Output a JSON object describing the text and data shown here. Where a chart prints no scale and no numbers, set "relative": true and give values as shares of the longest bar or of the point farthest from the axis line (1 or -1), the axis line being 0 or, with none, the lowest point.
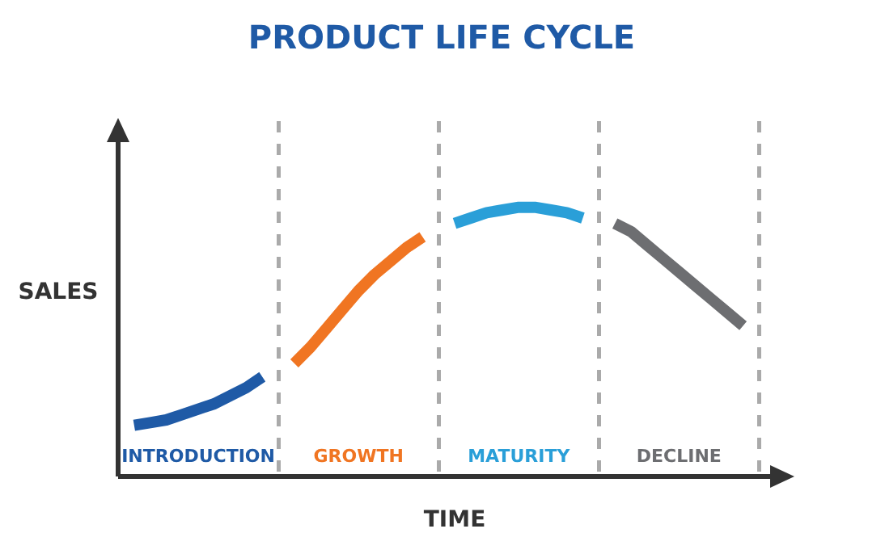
{
  "chart_data": {
    "type": "line",
    "title": "PRODUCT LIFE CYCLE",
    "xlabel": "TIME",
    "ylabel": "SALES",
    "relative": true,
    "grid": "x",
    "legend": false,
    "marker": "none",
    "line_style": "solid",
    "categories": [
      null,
      null,
      null,
      null,
      null,
      null,
      null,
      null,
      null,
      null,
      null,
      null,
      null,
      null,
      null,
      null,
      null,
      null,
      null,
      null,
      null,
      null,
      null,
      null,
      null,
      null,
      null,
      null,
      null,
      null,
      null,
      null,
      null,
      null,
      null,
      null,
      null,
      null,
      null,
      null,
      null,
      null,
      null
    ],
    "series": [
      {
        "name": "INTRODUCTION",
        "color": "#1f5aa6",
        "values": [
          null,
          0.19,
          0.2,
          0.21,
          0.23,
          0.25,
          0.27,
          0.3,
          0.33,
          0.37,
          null,
          null,
          null,
          null,
          null,
          null,
          null,
          null,
          null,
          null,
          null,
          null,
          null,
          null,
          null,
          null,
          null,
          null,
          null,
          null,
          null,
          null,
          null,
          null,
          null,
          null,
          null,
          null,
          null,
          null,
          null,
          null,
          null
        ]
      },
      {
        "name": "GROWTH",
        "color": "#f07522",
        "values": [
          null,
          null,
          null,
          null,
          null,
          null,
          null,
          null,
          null,
          null,
          null,
          0.42,
          0.48,
          0.55,
          0.62,
          0.69,
          0.75,
          0.8,
          0.85,
          0.89,
          null,
          null,
          null,
          null,
          null,
          null,
          null,
          null,
          null,
          null,
          null,
          null,
          null,
          null,
          null,
          null,
          null,
          null,
          null,
          null,
          null,
          null,
          null
        ]
      },
      {
        "name": "MATURITY",
        "color": "#2a9fd8",
        "values": [
          null,
          null,
          null,
          null,
          null,
          null,
          null,
          null,
          null,
          null,
          null,
          null,
          null,
          null,
          null,
          null,
          null,
          null,
          null,
          null,
          null,
          0.94,
          0.96,
          0.98,
          0.99,
          1.0,
          1.0,
          0.99,
          0.98,
          0.96,
          null,
          null,
          null,
          null,
          null,
          null,
          null,
          null,
          null,
          null,
          null,
          null,
          null
        ]
      },
      {
        "name": "DECLINE",
        "color": "#6d6e71",
        "values": [
          null,
          null,
          null,
          null,
          null,
          null,
          null,
          null,
          null,
          null,
          null,
          null,
          null,
          null,
          null,
          null,
          null,
          null,
          null,
          null,
          null,
          null,
          null,
          null,
          null,
          null,
          null,
          null,
          null,
          null,
          null,
          0.94,
          0.91,
          0.86,
          0.81,
          0.76,
          0.71,
          0.66,
          0.61,
          0.56,
          null,
          null,
          null
        ]
      }
    ]
  }
}
